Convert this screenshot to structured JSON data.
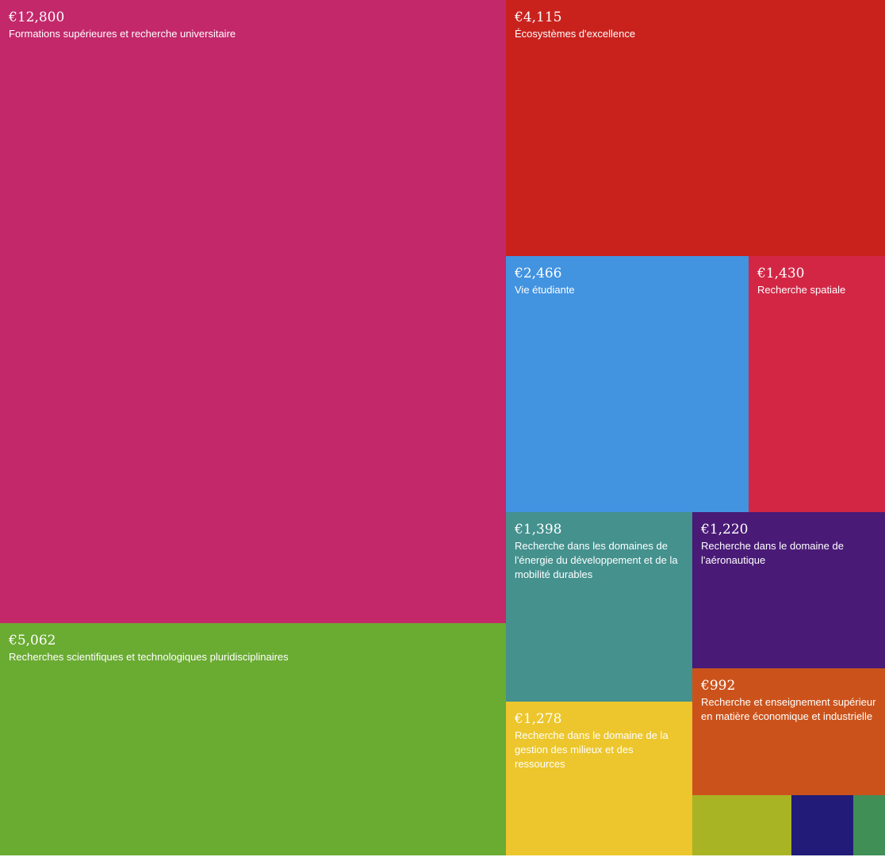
{
  "chart_data": {
    "type": "treemap",
    "currency": "€",
    "items": [
      {
        "value_label": "€12,800",
        "value": 12800,
        "label": "Formations supérieures et recherche universitaire",
        "color": "#c2286a"
      },
      {
        "value_label": "€5,062",
        "value": 5062,
        "label": "Recherches scientifiques et technologiques pluridisciplinaires",
        "color": "#6aab32"
      },
      {
        "value_label": "€4,115",
        "value": 4115,
        "label": "Écosystèmes d'excellence",
        "color": "#c9221d"
      },
      {
        "value_label": "€2,466",
        "value": 2466,
        "label": "Vie étudiante",
        "color": "#4293e0"
      },
      {
        "value_label": "€1,430",
        "value": 1430,
        "label": "Recherche spatiale",
        "color": "#d32645"
      },
      {
        "value_label": "€1,398",
        "value": 1398,
        "label": "Recherche dans les domaines de l'énergie du développement et de la mobilité durables",
        "color": "#44918e"
      },
      {
        "value_label": "€1,220",
        "value": 1220,
        "label": "Recherche dans le domaine de l'aéronautique",
        "color": "#491a76"
      },
      {
        "value_label": "€1,278",
        "value": 1278,
        "label": "Recherche dans le domaine de la gestion des milieux et des ressources",
        "color": "#ecc62c"
      },
      {
        "value_label": "€992",
        "value": 992,
        "label": "Recherche et enseignement supérieur en matière économique et industrielle",
        "color": "#cb531b"
      },
      {
        "value_label": "",
        "label": "",
        "color": "#a8b424"
      },
      {
        "value_label": "",
        "label": "",
        "color": "#221c78"
      },
      {
        "value_label": "",
        "label": "",
        "color": "#3f8f56"
      }
    ]
  }
}
